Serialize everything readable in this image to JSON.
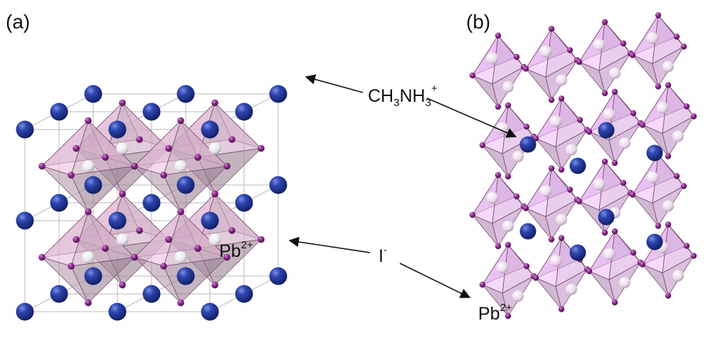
{
  "figure": {
    "panel_a_label": "(a)",
    "panel_b_label": "(b)"
  },
  "labels": {
    "methylammonium": {
      "base": "CH",
      "sub1": "3",
      "mid": "NH",
      "sub2": "3",
      "charge": "+"
    },
    "iodide": {
      "base": "I",
      "charge": "-"
    },
    "lead_a": {
      "base": "Pb",
      "charge": "2+"
    },
    "lead_b": {
      "base": "Pb",
      "charge": "2+"
    }
  },
  "colors": {
    "methylammonium_sphere": "#23399a",
    "iodide_sphere": "#8a2c8c",
    "lead_sphere": "#f2f2f2",
    "octahedron_a": "#d9b4cf",
    "octahedron_b": "#d7a6e0"
  }
}
